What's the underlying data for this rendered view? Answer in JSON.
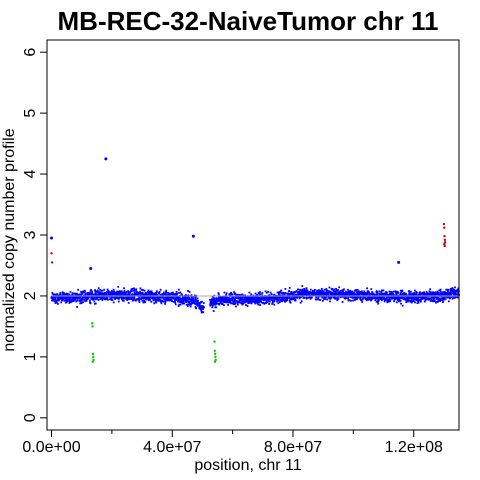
{
  "chart_data": {
    "type": "scatter",
    "title": "MB-REC-32-NaiveTumor chr 11",
    "xlabel": "position, chr 11",
    "ylabel": "normalized copy number profile",
    "xlim": [
      -1500000.0,
      135000000.0
    ],
    "ylim": [
      -0.2,
      6.2
    ],
    "x_ticks": [
      {
        "value": 0,
        "label": "0.0e+00"
      },
      {
        "value": 40000000,
        "label": "4.0e+07"
      },
      {
        "value": 80000000,
        "label": "8.0e+07"
      },
      {
        "value": 120000000,
        "label": "1.2e+08"
      }
    ],
    "x_minor_ticks": [
      20000000,
      60000000,
      100000000
    ],
    "y_ticks": [
      {
        "value": 0,
        "label": "0"
      },
      {
        "value": 1,
        "label": "1"
      },
      {
        "value": 2,
        "label": "2"
      },
      {
        "value": 3,
        "label": "3"
      },
      {
        "value": 4,
        "label": "4"
      },
      {
        "value": 5,
        "label": "5"
      },
      {
        "value": 6,
        "label": "6"
      }
    ],
    "grid": false,
    "series": [
      {
        "color": "#0000ff",
        "description": "normal copy number bins",
        "trend": [
          {
            "x": 0,
            "y": 1.97
          },
          {
            "x": 10000000,
            "y": 1.98
          },
          {
            "x": 20000000,
            "y": 2.02
          },
          {
            "x": 30000000,
            "y": 2.0
          },
          {
            "x": 40000000,
            "y": 1.98
          },
          {
            "x": 47000000,
            "y": 1.93
          },
          {
            "x": 50000000,
            "y": 1.8
          },
          {
            "x": 52000000,
            "y": 1.88
          },
          {
            "x": 57000000,
            "y": 1.95
          },
          {
            "x": 65000000,
            "y": 1.95
          },
          {
            "x": 75000000,
            "y": 1.98
          },
          {
            "x": 85000000,
            "y": 2.03
          },
          {
            "x": 100000000,
            "y": 2.02
          },
          {
            "x": 110000000,
            "y": 1.99
          },
          {
            "x": 120000000,
            "y": 1.98
          },
          {
            "x": 128000000,
            "y": 2.0
          },
          {
            "x": 135000000,
            "y": 2.05
          }
        ],
        "outliers": [
          {
            "x": 18000000,
            "y": 4.25
          },
          {
            "x": 47000000,
            "y": 2.98
          },
          {
            "x": 115000000,
            "y": 2.55
          },
          {
            "x": 13000000,
            "y": 2.45
          },
          {
            "x": 0,
            "y": 2.95
          }
        ]
      },
      {
        "color": "#00cc00",
        "description": "loss bins",
        "points": [
          {
            "x": 13500000,
            "y": 1.55
          },
          {
            "x": 13600000,
            "y": 1.5
          },
          {
            "x": 13700000,
            "y": 1.05
          },
          {
            "x": 13800000,
            "y": 1.0
          },
          {
            "x": 13900000,
            "y": 0.95
          },
          {
            "x": 13650000,
            "y": 0.92
          },
          {
            "x": 54000000,
            "y": 1.25
          },
          {
            "x": 54100000,
            "y": 1.1
          },
          {
            "x": 54200000,
            "y": 1.05
          },
          {
            "x": 54300000,
            "y": 1.0
          },
          {
            "x": 54400000,
            "y": 0.95
          },
          {
            "x": 54150000,
            "y": 0.92
          }
        ]
      },
      {
        "color": "#cc0000",
        "description": "gain bins",
        "points": [
          {
            "x": 0,
            "y": 2.7
          },
          {
            "x": 200000,
            "y": 2.55
          },
          {
            "x": 130000000,
            "y": 3.18
          },
          {
            "x": 130100000,
            "y": 3.12
          },
          {
            "x": 130200000,
            "y": 2.98
          },
          {
            "x": 130300000,
            "y": 2.92
          },
          {
            "x": 130400000,
            "y": 2.88
          },
          {
            "x": 130150000,
            "y": 2.85
          },
          {
            "x": 130250000,
            "y": 2.82
          }
        ]
      }
    ],
    "segments": [
      {
        "x0": 0,
        "x1": 47000000,
        "y": 2.0,
        "color": "#aaaaaa"
      },
      {
        "x0": 47000000,
        "x1": 135000000,
        "y": 2.0,
        "color": "#aaaaaa"
      }
    ]
  }
}
